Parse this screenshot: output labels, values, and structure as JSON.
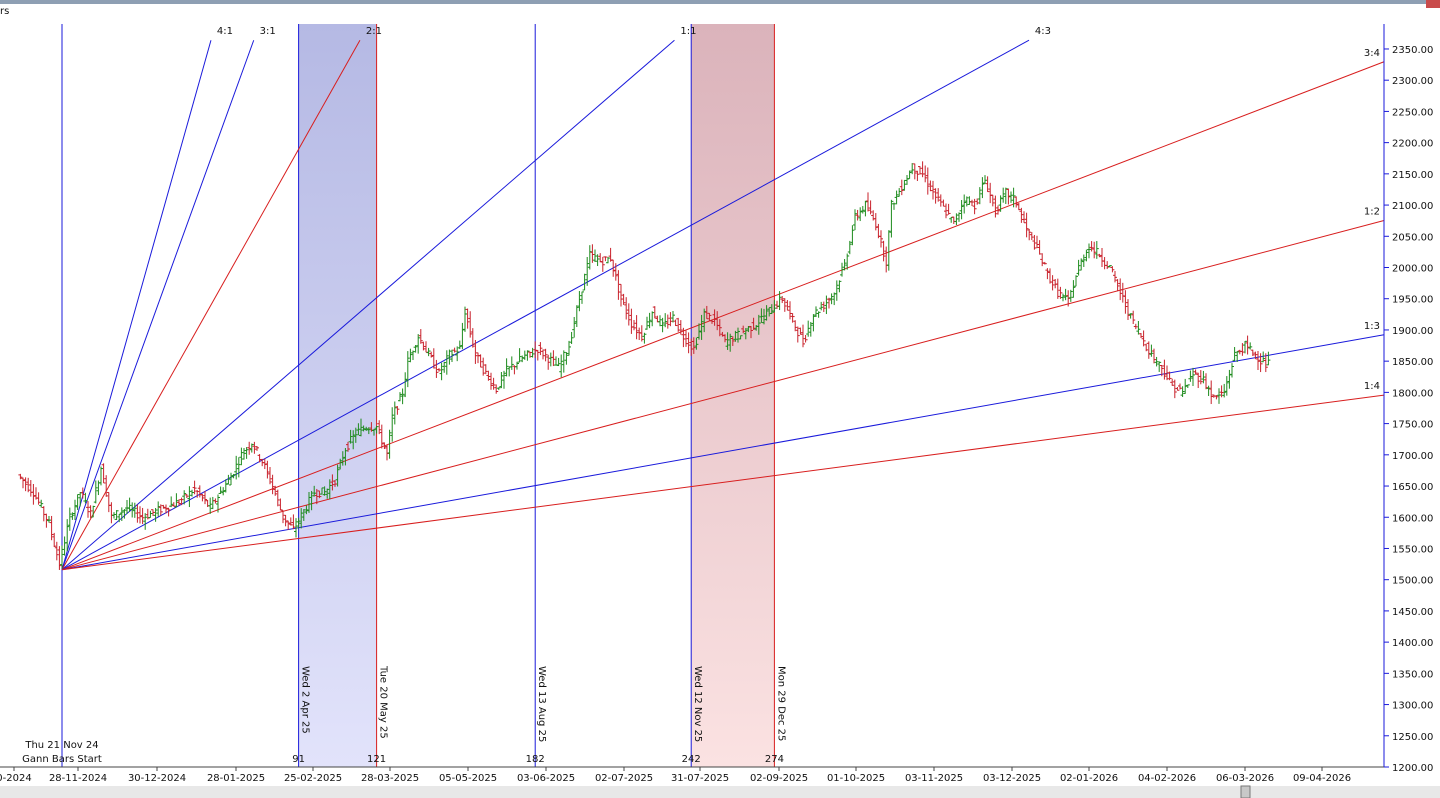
{
  "window": {
    "title_fragment": "rs",
    "colors": {
      "frame": "#8e9fb3",
      "close_button": "#c94b4b"
    }
  },
  "chart_data": {
    "type": "candlestick",
    "ylim": [
      1200,
      2390
    ],
    "y_ticks": [
      1200,
      1250,
      1300,
      1350,
      1400,
      1450,
      1500,
      1550,
      1600,
      1650,
      1700,
      1750,
      1800,
      1850,
      1900,
      1950,
      2000,
      2050,
      2100,
      2150,
      2200,
      2250,
      2300,
      2350
    ],
    "x_ticks": [
      "0-2024",
      "28-11-2024",
      "30-12-2024",
      "28-01-2025",
      "25-02-2025",
      "28-03-2025",
      "05-05-2025",
      "03-06-2025",
      "02-07-2025",
      "31-07-2025",
      "02-09-2025",
      "01-10-2025",
      "03-11-2025",
      "03-12-2025",
      "02-01-2026",
      "04-02-2026",
      "06-03-2026",
      "09-04-2026"
    ],
    "bars_domain": [
      0,
      320
    ],
    "gann_start": {
      "bar": 0,
      "price": 1516,
      "label_line1": "Thu 21 Nov 24",
      "label_line2": "Gann Bars Start"
    },
    "fan": [
      {
        "ratio": "4:1",
        "slope": 14.8,
        "color": "#1a1adb"
      },
      {
        "ratio": "3:1",
        "slope": 11.5,
        "color": "#1a1adb"
      },
      {
        "ratio": "2:1",
        "slope": 7.4,
        "color": "#d81e1e"
      },
      {
        "ratio": "1:1",
        "slope": 3.6,
        "color": "#1a1adb"
      },
      {
        "ratio": "4:3",
        "slope": 2.28,
        "color": "#1a1adb"
      },
      {
        "ratio": "3:4",
        "slope": 1.6,
        "color": "#d81e1e"
      },
      {
        "ratio": "1:2",
        "slope": 1.1,
        "color": "#d81e1e"
      },
      {
        "ratio": "1:3",
        "slope": 0.74,
        "color": "#1a1adb"
      },
      {
        "ratio": "1:4",
        "slope": 0.55,
        "color": "#d81e1e"
      }
    ],
    "verticals": [
      {
        "bar": 0,
        "color": "#1a1adb",
        "date": "",
        "count": ""
      },
      {
        "bar": 91,
        "color": "#1a1adb",
        "date": "Wed 2 Apr 25",
        "count": "91"
      },
      {
        "bar": 121,
        "color": "#d81e1e",
        "date": "Tue 20 May 25",
        "count": "121"
      },
      {
        "bar": 182,
        "color": "#1a1adb",
        "date": "Wed 13 Aug 25",
        "count": "182"
      },
      {
        "bar": 242,
        "color": "#1a1adb",
        "date": "Wed 12 Nov 25",
        "count": "242"
      },
      {
        "bar": 274,
        "color": "#d81e1e",
        "date": "Mon 29 Dec 25",
        "count": "274"
      }
    ],
    "shaded_regions": [
      {
        "from_bar": 91,
        "to_bar": 121,
        "color": "blue"
      },
      {
        "from_bar": 242,
        "to_bar": 274,
        "color": "red"
      }
    ],
    "price_path": [
      [
        -16,
        1668
      ],
      [
        -10,
        1640
      ],
      [
        -4,
        1590
      ],
      [
        0,
        1525
      ],
      [
        4,
        1600
      ],
      [
        8,
        1640
      ],
      [
        12,
        1605
      ],
      [
        16,
        1680
      ],
      [
        20,
        1600
      ],
      [
        26,
        1615
      ],
      [
        32,
        1600
      ],
      [
        40,
        1615
      ],
      [
        46,
        1625
      ],
      [
        52,
        1645
      ],
      [
        58,
        1615
      ],
      [
        62,
        1640
      ],
      [
        66,
        1665
      ],
      [
        70,
        1700
      ],
      [
        74,
        1720
      ],
      [
        78,
        1690
      ],
      [
        82,
        1650
      ],
      [
        86,
        1600
      ],
      [
        90,
        1580
      ],
      [
        94,
        1610
      ],
      [
        98,
        1640
      ],
      [
        102,
        1640
      ],
      [
        106,
        1660
      ],
      [
        110,
        1710
      ],
      [
        114,
        1735
      ],
      [
        118,
        1745
      ],
      [
        122,
        1745
      ],
      [
        126,
        1700
      ],
      [
        128,
        1760
      ],
      [
        132,
        1800
      ],
      [
        134,
        1850
      ],
      [
        138,
        1890
      ],
      [
        142,
        1860
      ],
      [
        146,
        1830
      ],
      [
        150,
        1860
      ],
      [
        154,
        1870
      ],
      [
        156,
        1930
      ],
      [
        160,
        1860
      ],
      [
        164,
        1830
      ],
      [
        168,
        1805
      ],
      [
        172,
        1835
      ],
      [
        178,
        1855
      ],
      [
        184,
        1870
      ],
      [
        188,
        1855
      ],
      [
        192,
        1840
      ],
      [
        196,
        1875
      ],
      [
        200,
        1950
      ],
      [
        204,
        2020
      ],
      [
        208,
        2010
      ],
      [
        212,
        2015
      ],
      [
        216,
        1950
      ],
      [
        220,
        1910
      ],
      [
        224,
        1890
      ],
      [
        228,
        1930
      ],
      [
        232,
        1905
      ],
      [
        236,
        1920
      ],
      [
        240,
        1890
      ],
      [
        244,
        1870
      ],
      [
        248,
        1925
      ],
      [
        252,
        1915
      ],
      [
        256,
        1880
      ],
      [
        262,
        1895
      ],
      [
        268,
        1910
      ],
      [
        274,
        1935
      ],
      [
        278,
        1950
      ],
      [
        282,
        1915
      ],
      [
        286,
        1880
      ],
      [
        290,
        1925
      ],
      [
        294,
        1940
      ],
      [
        298,
        1960
      ],
      [
        302,
        2005
      ],
      [
        306,
        2080
      ],
      [
        310,
        2100
      ],
      [
        314,
        2070
      ],
      [
        318,
        2010
      ],
      [
        320,
        2100
      ],
      [
        324,
        2130
      ],
      [
        328,
        2160
      ],
      [
        332,
        2150
      ],
      [
        336,
        2120
      ],
      [
        340,
        2095
      ],
      [
        344,
        2070
      ],
      [
        348,
        2110
      ],
      [
        352,
        2100
      ],
      [
        356,
        2140
      ],
      [
        360,
        2090
      ],
      [
        364,
        2120
      ],
      [
        368,
        2105
      ],
      [
        372,
        2060
      ],
      [
        376,
        2030
      ],
      [
        380,
        1990
      ],
      [
        384,
        1960
      ],
      [
        388,
        1945
      ],
      [
        392,
        2000
      ],
      [
        396,
        2035
      ],
      [
        400,
        2020
      ],
      [
        404,
        2000
      ],
      [
        408,
        1960
      ],
      [
        412,
        1920
      ],
      [
        416,
        1890
      ],
      [
        420,
        1860
      ],
      [
        424,
        1840
      ],
      [
        428,
        1810
      ],
      [
        432,
        1800
      ],
      [
        436,
        1830
      ],
      [
        440,
        1820
      ],
      [
        444,
        1790
      ],
      [
        448,
        1800
      ],
      [
        452,
        1860
      ],
      [
        456,
        1875
      ],
      [
        460,
        1860
      ],
      [
        464,
        1845
      ]
    ]
  }
}
